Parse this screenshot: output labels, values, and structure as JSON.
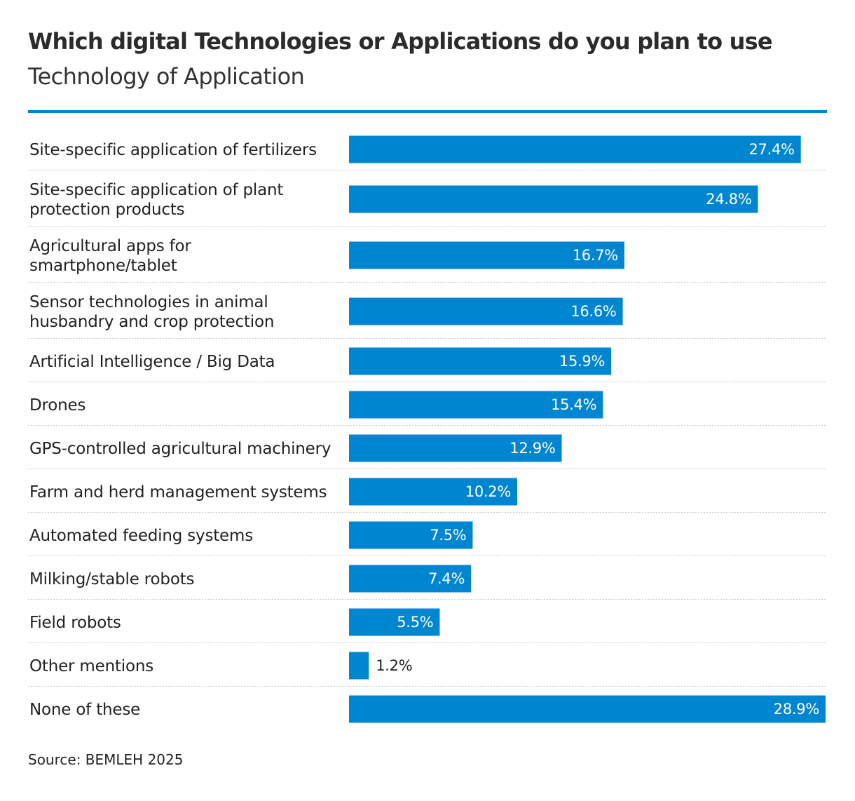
{
  "colors": {
    "bar": "#0086d1",
    "rule": "#0086d1",
    "divider": "#c8c8c8",
    "value_inside": "#ffffff",
    "value_outside": "#222222"
  },
  "source": "Source: BEMLEH 2025",
  "chart_data": {
    "type": "bar",
    "orientation": "horizontal",
    "title": "Which digital Technologies or Applications do you plan to use",
    "subtitle": "Technology of Application",
    "xlim": [
      0,
      28.9
    ],
    "grid": false,
    "legend": "none",
    "categories": [
      [
        "Site-specific application of fertilizers"
      ],
      [
        "Site-specific application of plant",
        "protection products"
      ],
      [
        "Agricultural apps for",
        "smartphone/tablet"
      ],
      [
        "Sensor technologies in animal",
        "husbandry and crop protection"
      ],
      [
        "Artificial Intelligence / Big Data"
      ],
      [
        "Drones"
      ],
      [
        "GPS-controlled agricultural machinery"
      ],
      [
        "Farm and herd management systems"
      ],
      [
        "Automated feeding systems"
      ],
      [
        "Milking/stable robots"
      ],
      [
        "Field robots"
      ],
      [
        "Other mentions"
      ],
      [
        "None of these"
      ]
    ],
    "values": [
      27.4,
      24.8,
      16.7,
      16.6,
      15.9,
      15.4,
      12.9,
      10.2,
      7.5,
      7.4,
      5.5,
      1.2,
      28.9
    ],
    "value_labels": [
      "27.4%",
      "24.8%",
      "16.7%",
      "16.6%",
      "15.9%",
      "15.4%",
      "12.9%",
      "10.2%",
      "7.5%",
      "7.4%",
      "5.5%",
      "1.2%",
      "28.9%"
    ]
  }
}
